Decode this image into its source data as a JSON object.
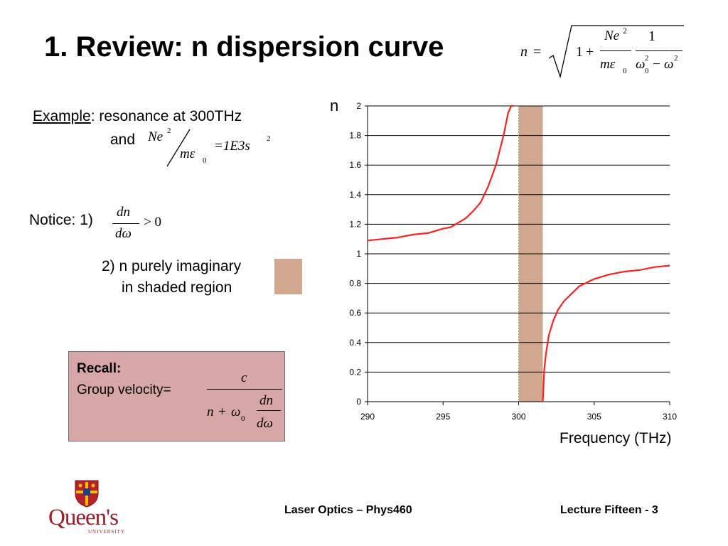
{
  "slide": {
    "title": "1. Review: n dispersion curve",
    "header_formula": {
      "lhs": "n",
      "eq": "=",
      "one": "1",
      "plus": "+",
      "num1": "Ne",
      "num1_exp": "2",
      "den1": "mε",
      "den1_sub": "0",
      "num2": "1",
      "den2_a": "ω",
      "den2_a_exp": "2",
      "den2_a_sub": "0",
      "den2_minus": "−",
      "den2_b": "ω",
      "den2_b_exp": "2"
    },
    "example": {
      "label": "Example",
      "text": ": resonance at 300THz",
      "and": "and",
      "num": "Ne",
      "num_exp": "2",
      "den": "mε",
      "den_sub": "0",
      "rhs": "=1E3s",
      "rhs_exp": "2"
    },
    "notice": {
      "label": "Notice:  1)",
      "frac_num": "dn",
      "frac_den": "dω",
      "rel": "> 0",
      "item2_line1": "2) n purely imaginary",
      "item2_line2": "in shaded region"
    },
    "recall": {
      "title": "Recall:",
      "label": "Group velocity=",
      "num": "c",
      "den_n": "n",
      "den_plus": "+",
      "den_omega": "ω",
      "den_sub": "0",
      "inner_num": "dn",
      "inner_den": "dω"
    },
    "footer": {
      "left": "Laser Optics – Phys460",
      "right": "Lecture Fifteen - 3",
      "logo_text": "Queen's",
      "logo_sub": "UNIVERSITY"
    },
    "colors": {
      "curve": "#ff2020",
      "shade": "#d2a790",
      "recall_bg": "#d7a7a7"
    }
  },
  "chart_data": {
    "type": "line",
    "title": "",
    "xlabel": "Frequency (THz)",
    "ylabel": "n",
    "xlim": [
      290,
      310
    ],
    "ylim": [
      0,
      2
    ],
    "x_ticks": [
      "290",
      "295",
      "300",
      "305",
      "310"
    ],
    "y_ticks": [
      "0",
      "0.2",
      "0.4",
      "0.6",
      "0.8",
      "1",
      "1.2",
      "1.4",
      "1.6",
      "1.8",
      "2"
    ],
    "grid": "horizontal",
    "resonance_THz": 300,
    "shaded_region": [
      300,
      301.6
    ],
    "series": [
      {
        "x": [
          290,
          291,
          292,
          293,
          294,
          295,
          295.5,
          296,
          296.5,
          297,
          297.5,
          298,
          298.5,
          299,
          299.3,
          299.5,
          299.6,
          299.65
        ],
        "values": [
          1.09,
          1.1,
          1.11,
          1.13,
          1.14,
          1.17,
          1.18,
          1.21,
          1.24,
          1.29,
          1.35,
          1.46,
          1.6,
          1.8,
          1.95,
          2.0,
          2.0,
          2.0
        ]
      },
      {
        "x": [
          301.6,
          301.65,
          301.7,
          301.8,
          302,
          302.3,
          302.6,
          303,
          303.5,
          304,
          305,
          306,
          307,
          308,
          309,
          310
        ],
        "values": [
          0.0,
          0.12,
          0.22,
          0.32,
          0.45,
          0.55,
          0.62,
          0.68,
          0.73,
          0.78,
          0.83,
          0.86,
          0.88,
          0.89,
          0.91,
          0.92
        ]
      }
    ]
  }
}
